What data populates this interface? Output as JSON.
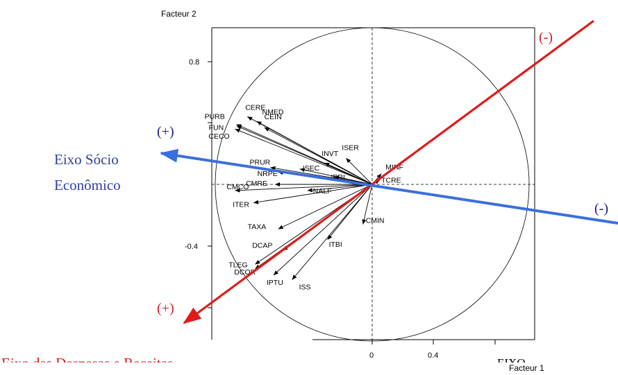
{
  "chart_data": {
    "type": "correlation-circle",
    "xlabel": "Facteur 1",
    "ylabel": "Facteur 2",
    "xticks": [
      {
        "value": 0,
        "label": "0"
      },
      {
        "value": 0.4,
        "label": "0.4"
      }
    ],
    "yticks": [
      {
        "value": 0.8,
        "label": "0.8"
      },
      {
        "value": -0.4,
        "label": "-0.4"
      }
    ],
    "variables": [
      {
        "name": "CERE",
        "x": -0.81,
        "y": 0.44
      },
      {
        "name": "NMED",
        "x": -0.75,
        "y": 0.41
      },
      {
        "name": "PURB",
        "x": -0.88,
        "y": 0.39
      },
      {
        "name": "FUN",
        "x": -0.88,
        "y": 0.38
      },
      {
        "name": "CEIN",
        "x": -0.7,
        "y": 0.37
      },
      {
        "name": "CECO",
        "x": -0.89,
        "y": 0.36
      },
      {
        "name": "INVT",
        "x": -0.31,
        "y": 0.14
      },
      {
        "name": "ISER",
        "x": -0.17,
        "y": 0.17
      },
      {
        "name": "MINF",
        "x": 0.06,
        "y": 0.07
      },
      {
        "name": "PRUR",
        "x": -0.66,
        "y": 0.11
      },
      {
        "name": "NRPE",
        "x": -0.61,
        "y": 0.08
      },
      {
        "name": "ISEC",
        "x": -0.47,
        "y": 0.1
      },
      {
        "name": "IPRI",
        "x": -0.25,
        "y": 0.05
      },
      {
        "name": "TCRE",
        "x": 0.05,
        "y": 0.03
      },
      {
        "name": "CMRE",
        "x": -0.63,
        "y": 0.0
      },
      {
        "name": "CMCO",
        "x": -0.89,
        "y": -0.04
      },
      {
        "name": "NALF",
        "x": -0.42,
        "y": -0.04
      },
      {
        "name": "ITER",
        "x": -0.77,
        "y": -0.12
      },
      {
        "name": "TAXA",
        "x": -0.61,
        "y": -0.29
      },
      {
        "name": "CMIN",
        "x": -0.06,
        "y": -0.26
      },
      {
        "name": "DCAP",
        "x": -0.58,
        "y": -0.43
      },
      {
        "name": "ITBI",
        "x": -0.29,
        "y": -0.36
      },
      {
        "name": "TLEG",
        "x": -0.76,
        "y": -0.52
      },
      {
        "name": "DCOR",
        "x": -0.76,
        "y": -0.55
      },
      {
        "name": "IPTU",
        "x": -0.64,
        "y": -0.59
      },
      {
        "name": "ISS",
        "x": -0.52,
        "y": -0.62
      }
    ],
    "annotations": {
      "socio_axis_label_line1": "Eixo Sócio",
      "socio_axis_label_line2": "Econômico",
      "socio_plus": "(+)",
      "socio_minus": "(-)",
      "despesas_axis_label": "Eixo das Despesas e Receitas",
      "despesas_plus": "(+)",
      "despesas_minus": "(-)",
      "eixo_text": "EIXO"
    },
    "colors": {
      "blue_axis": "#3a6fdd",
      "red_axis": "#e01a1a",
      "blue_text": "#2f3fa7",
      "red_text": "#d91a1a"
    }
  }
}
